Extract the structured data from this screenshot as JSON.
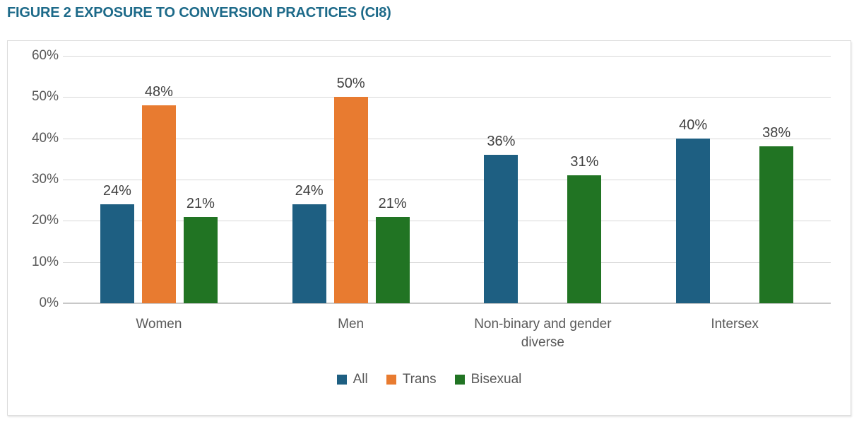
{
  "figure": {
    "title": "FIGURE 2 EXPOSURE TO CONVERSION PRACTICES (CI8)"
  },
  "chart_data": {
    "type": "bar",
    "title": "FIGURE 2 EXPOSURE TO CONVERSION PRACTICES (CI8)",
    "categories": [
      "Women",
      "Men",
      "Non-binary and gender diverse",
      "Intersex"
    ],
    "series": [
      {
        "name": "All",
        "color": "#1e5f82",
        "values": [
          24,
          24,
          36,
          40
        ]
      },
      {
        "name": "Trans",
        "color": "#e87b30",
        "values": [
          48,
          50,
          null,
          null
        ]
      },
      {
        "name": "Bisexual",
        "color": "#217423",
        "values": [
          21,
          21,
          31,
          38
        ]
      }
    ],
    "data_labels": {
      "All": [
        "24%",
        "24%",
        "36%",
        "40%"
      ],
      "Trans": [
        "48%",
        "50%",
        null,
        null
      ],
      "Bisexual": [
        "21%",
        "21%",
        "31%",
        "38%"
      ]
    },
    "value_suffix": "%",
    "y_axis": {
      "min": 0,
      "max": 60,
      "step": 10,
      "tick_labels": [
        "0%",
        "10%",
        "20%",
        "30%",
        "40%",
        "50%",
        "60%"
      ]
    },
    "grid": true,
    "legend_position": "bottom",
    "legend_entries": [
      "All",
      "Trans",
      "Bisexual"
    ]
  },
  "colors": {
    "title": "#1d6a89",
    "axis_text": "#595959",
    "value_label_text": "#404040",
    "gridline": "#d9d9d9",
    "baseline": "#c8c8c8",
    "series_all": "#1e5f82",
    "series_trans": "#e87b30",
    "series_bisexual": "#217423"
  }
}
